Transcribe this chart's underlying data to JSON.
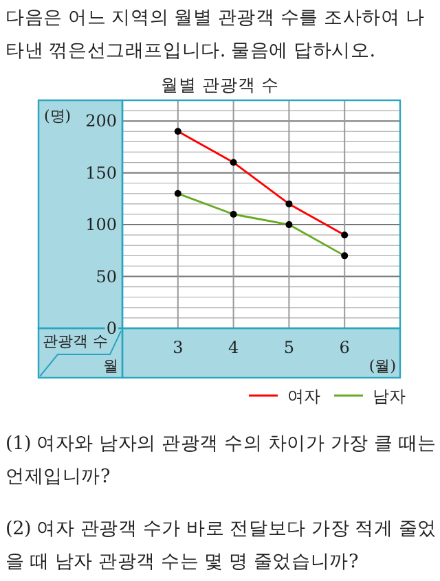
{
  "chart_data": {
    "type": "line",
    "title": "월별 관광객 수",
    "x": [
      3,
      4,
      5,
      6
    ],
    "series": [
      {
        "name": "여자",
        "color": "#ff0000",
        "values": [
          190,
          160,
          120,
          90
        ]
      },
      {
        "name": "남자",
        "color": "#66aa22",
        "values": [
          130,
          110,
          100,
          70
        ]
      }
    ],
    "xlim": [
      2,
      7
    ],
    "xticks": [
      3,
      4,
      5,
      6
    ],
    "ylim": [
      0,
      220
    ],
    "yticks": [
      0,
      {
        "value": 10,
        "label": null
      },
      {
        "value": 20,
        "label": null
      },
      {
        "value": 30,
        "label": null
      },
      {
        "value": 40,
        "label": null
      },
      50,
      {
        "value": 60,
        "label": null
      },
      {
        "value": 70,
        "label": null
      },
      {
        "value": 80,
        "label": null
      },
      {
        "value": 90,
        "label": null
      },
      100,
      {
        "value": 110,
        "label": null
      },
      {
        "value": 120,
        "label": null
      },
      {
        "value": 130,
        "label": null
      },
      {
        "value": 140,
        "label": null
      },
      150,
      {
        "value": 160,
        "label": null
      },
      {
        "value": 170,
        "label": null
      },
      {
        "value": 180,
        "label": null
      },
      {
        "value": 190,
        "label": null
      },
      200,
      {
        "value": 210,
        "label": null
      }
    ],
    "xlabel": "(월)",
    "ylabel": "(명)",
    "grid": true,
    "legend": "bottom right",
    "marker": "circle",
    "annotations": [
      "다음은 어느 지역의 월별 관광객 수를 조사하여 나타낸 꺾은선그래프입니다. 물음에 답하시오.",
      "관광객 수",
      "월",
      "(1) 여자와 남자의 관광객 수의 차이가 가장 클 때는 언제입니까?",
      "(2) 여자 관광객 수가 바로 전달보다 가장 적게 줄었을 때 남자 관광객 수는 몇 명 줄었습니까?"
    ]
  }
}
